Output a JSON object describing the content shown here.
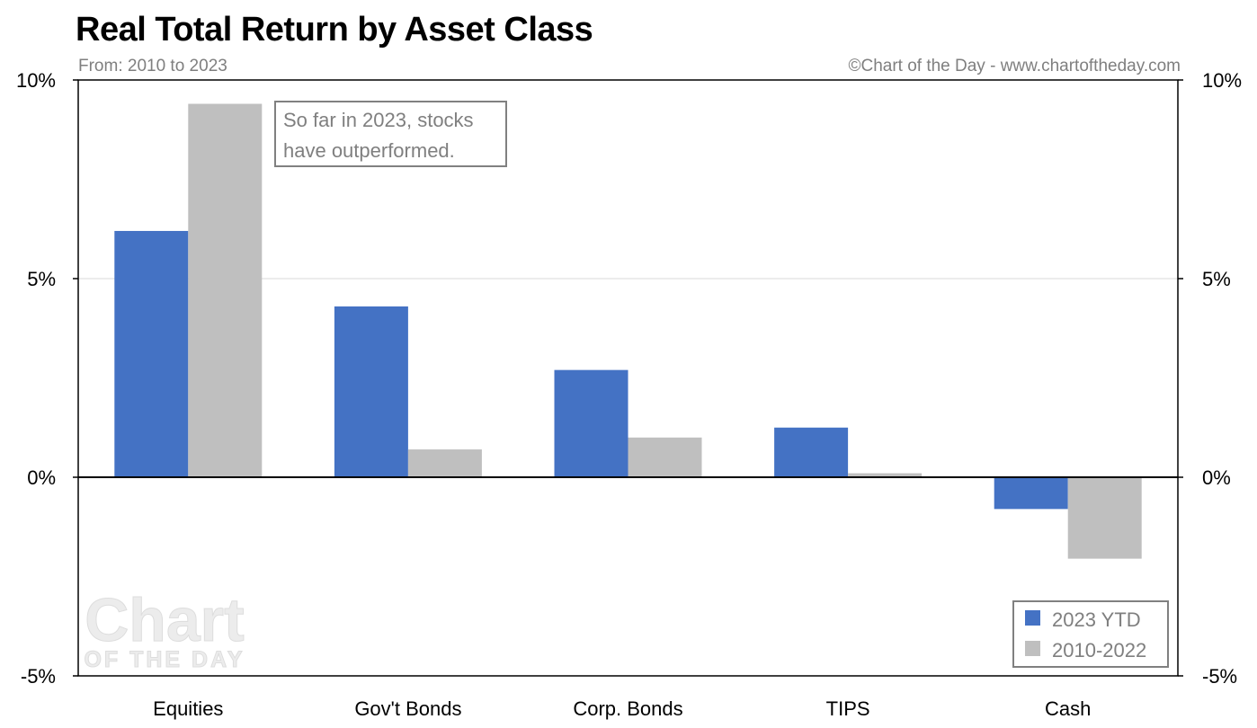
{
  "header": {
    "title": "Real Total Return by Asset Class",
    "subtitle": "From: 2010 to 2023",
    "credit": "©Chart of the Day - www.chartoftheday.com"
  },
  "watermark": {
    "line1": "Chart",
    "line2": "OF THE DAY"
  },
  "annotation": {
    "line1": "So far in 2023, stocks",
    "line2": "have outperformed."
  },
  "colors": {
    "series_2023": "#4472c4",
    "series_2010": "#bfbfbf",
    "axis": "#000000",
    "grid": "#d9d9d9",
    "annotation_text": "#7f7f7f",
    "watermark": "#e6e6e6"
  },
  "chart_data": {
    "type": "bar",
    "title": "Real Total Return by Asset Class",
    "subtitle": "From: 2010 to 2023",
    "categories": [
      "Equities",
      "Gov't Bonds",
      "Corp. Bonds",
      "TIPS",
      "Cash"
    ],
    "series": [
      {
        "name": "2023 YTD",
        "values": [
          6.2,
          4.3,
          2.7,
          1.25,
          -0.8
        ]
      },
      {
        "name": "2010-2022",
        "values": [
          9.4,
          0.7,
          1.0,
          0.1,
          -2.05
        ]
      }
    ],
    "ylim": [
      -5,
      10
    ],
    "yticks": [
      10,
      5,
      0,
      -5
    ],
    "ytick_labels": [
      "10%",
      "5%",
      "0%",
      "-5%"
    ],
    "secondary_axis": true,
    "grid": true,
    "legend_position": "bottom-right",
    "xlabel": "",
    "ylabel": ""
  }
}
